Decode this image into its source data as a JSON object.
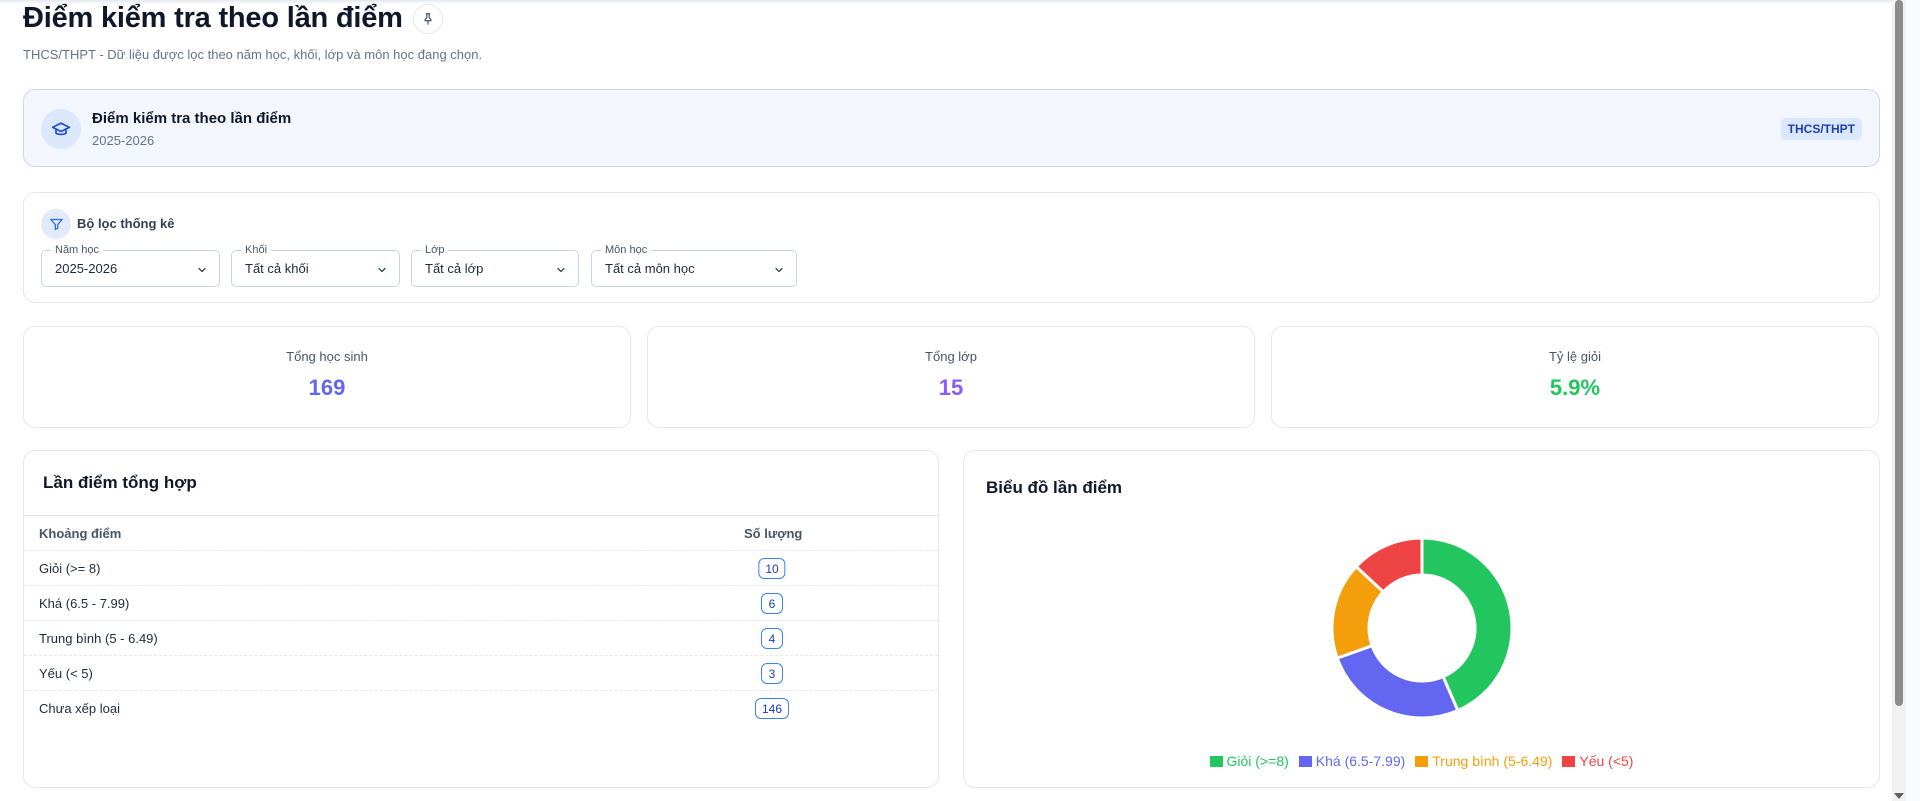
{
  "page": {
    "title": "Điểm kiểm tra theo lần điểm",
    "subtitle": "THCS/THPT - Dữ liệu được lọc theo năm học, khối, lớp và môn học đang chọn."
  },
  "info_card": {
    "title": "Điểm kiểm tra theo lần điểm",
    "year": "2025-2026",
    "badge": "THCS/THPT"
  },
  "filters": {
    "title": "Bộ lọc thống kê",
    "year": {
      "label": "Năm học",
      "value": "2025-2026"
    },
    "grade": {
      "label": "Khối",
      "value": "Tất cả khối"
    },
    "class": {
      "label": "Lớp",
      "value": "Tất cả lớp"
    },
    "subject": {
      "label": "Môn học",
      "value": "Tất cả môn học"
    }
  },
  "stats": {
    "students": {
      "label": "Tổng học sinh",
      "value": "169",
      "color": "#6366f1"
    },
    "classes": {
      "label": "Tổng lớp",
      "value": "15",
      "color": "#8b5cf6"
    },
    "excellent_rate": {
      "label": "Tỷ lệ giỏi",
      "value": "5.9%",
      "color": "#22c55e"
    }
  },
  "table": {
    "title": "Lần điểm tổng hợp",
    "headers": {
      "range": "Khoảng điểm",
      "count": "Số lượng"
    },
    "rows": [
      {
        "range": "Giỏi (>= 8)",
        "count": "10"
      },
      {
        "range": "Khá (6.5 - 7.99)",
        "count": "6"
      },
      {
        "range": "Trung bình (5 - 6.49)",
        "count": "4"
      },
      {
        "range": "Yếu (< 5)",
        "count": "3"
      },
      {
        "range": "Chưa xếp loại",
        "count": "146"
      }
    ]
  },
  "chart": {
    "title": "Biểu đồ lần điểm"
  },
  "chart_data": {
    "type": "pie",
    "donut": true,
    "title": "Biểu đồ lần điểm",
    "categories": [
      "Giỏi (>=8)",
      "Khá (6.5-7.99)",
      "Trung bình (5-6.49)",
      "Yếu (<5)"
    ],
    "values": [
      10,
      6,
      4,
      3
    ],
    "colors": [
      "#22c55e",
      "#6366f1",
      "#f59e0b",
      "#ef4444"
    ],
    "legend": "bottom"
  },
  "icons": {
    "pin": "pin-icon",
    "graduation": "graduation-cap-icon",
    "filter": "filter-icon",
    "chevron": "chevron-down-icon"
  }
}
